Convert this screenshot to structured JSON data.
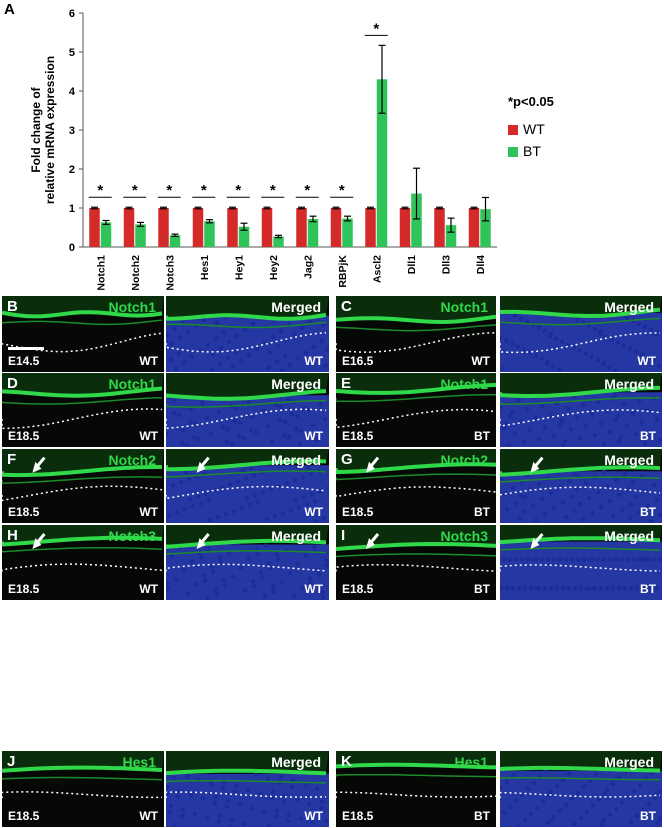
{
  "figure": {
    "panel_a_label": "A",
    "legend_note": "*p<0.05",
    "colors": {
      "WT": "#d42a2a",
      "BT": "#2fc45a",
      "fluor_green": "#2fd94a",
      "dapi_blue": "#2a3fbf"
    }
  },
  "chart_data": {
    "type": "bar",
    "categories": [
      "Notch1",
      "Notch2",
      "Notch3",
      "Hes1",
      "Hey1",
      "Hey2",
      "Jag2",
      "RBPjK",
      "Ascl2",
      "Dll1",
      "Dll3",
      "Dll4"
    ],
    "series": [
      {
        "name": "WT",
        "color": "#d42a2a",
        "values": [
          1.0,
          1.0,
          1.0,
          1.0,
          1.0,
          1.0,
          1.0,
          1.0,
          1.0,
          1.0,
          1.0,
          1.0
        ],
        "errors": [
          0.02,
          0.02,
          0.02,
          0.02,
          0.02,
          0.02,
          0.02,
          0.02,
          0.02,
          0.02,
          0.02,
          0.02
        ]
      },
      {
        "name": "BT",
        "color": "#2fc45a",
        "values": [
          0.63,
          0.58,
          0.3,
          0.66,
          0.52,
          0.27,
          0.72,
          0.73,
          4.3,
          1.37,
          0.56,
          0.97
        ],
        "errors": [
          0.05,
          0.05,
          0.03,
          0.04,
          0.09,
          0.03,
          0.07,
          0.06,
          0.87,
          0.65,
          0.18,
          0.3
        ]
      }
    ],
    "significance": [
      true,
      true,
      true,
      true,
      true,
      true,
      true,
      true,
      true,
      false,
      false,
      false
    ],
    "significance_mark": "*",
    "ylabel": "Fold change of relative mRNA expression",
    "ylabel_lines": [
      "Fold change of",
      "relative mRNA expression"
    ],
    "xlabel": "",
    "ylim": [
      0,
      6
    ],
    "yticks": [
      0,
      1,
      2,
      3,
      4,
      5,
      6
    ],
    "legend_position": "right",
    "grid": false
  },
  "panels": [
    {
      "label": "B",
      "marker": "Notch1",
      "stage": "E14.5",
      "genotype": "WT",
      "scalebar": true,
      "arrow": false
    },
    {
      "label": "",
      "marker": "Merged",
      "stage": "",
      "genotype": "WT",
      "scalebar": false,
      "arrow": false
    },
    {
      "label": "C",
      "marker": "Notch1",
      "stage": "E16.5",
      "genotype": "WT",
      "scalebar": false,
      "arrow": false
    },
    {
      "label": "",
      "marker": "Merged",
      "stage": "",
      "genotype": "WT",
      "scalebar": false,
      "arrow": false
    },
    {
      "label": "D",
      "marker": "Notch1",
      "stage": "E18.5",
      "genotype": "WT",
      "scalebar": false,
      "arrow": false
    },
    {
      "label": "",
      "marker": "Merged",
      "stage": "",
      "genotype": "WT",
      "scalebar": false,
      "arrow": false
    },
    {
      "label": "E",
      "marker": "Notch1",
      "stage": "E18.5",
      "genotype": "BT",
      "scalebar": false,
      "arrow": false
    },
    {
      "label": "",
      "marker": "Merged",
      "stage": "",
      "genotype": "BT",
      "scalebar": false,
      "arrow": false
    },
    {
      "label": "F",
      "marker": "Notch2",
      "stage": "E18.5",
      "genotype": "WT",
      "scalebar": false,
      "arrow": true
    },
    {
      "label": "",
      "marker": "Merged",
      "stage": "",
      "genotype": "WT",
      "scalebar": false,
      "arrow": true
    },
    {
      "label": "G",
      "marker": "Notch2",
      "stage": "E18.5",
      "genotype": "BT",
      "scalebar": false,
      "arrow": true
    },
    {
      "label": "",
      "marker": "Merged",
      "stage": "",
      "genotype": "BT",
      "scalebar": false,
      "arrow": true
    },
    {
      "label": "H",
      "marker": "Notch3",
      "stage": "E18.5",
      "genotype": "WT",
      "scalebar": false,
      "arrow": true
    },
    {
      "label": "",
      "marker": "Merged",
      "stage": "",
      "genotype": "WT",
      "scalebar": false,
      "arrow": true
    },
    {
      "label": "I",
      "marker": "Notch3",
      "stage": "E18.5",
      "genotype": "BT",
      "scalebar": false,
      "arrow": true
    },
    {
      "label": "",
      "marker": "Merged",
      "stage": "",
      "genotype": "BT",
      "scalebar": false,
      "arrow": true
    },
    {
      "label": "J",
      "marker": "Hes1",
      "stage": "E18.5",
      "genotype": "WT",
      "scalebar": false,
      "arrow": false
    },
    {
      "label": "",
      "marker": "Merged",
      "stage": "",
      "genotype": "WT",
      "scalebar": false,
      "arrow": false
    },
    {
      "label": "K",
      "marker": "Hes1",
      "stage": "E18.5",
      "genotype": "BT",
      "scalebar": false,
      "arrow": false
    },
    {
      "label": "",
      "marker": "Merged",
      "stage": "",
      "genotype": "BT",
      "scalebar": false,
      "arrow": false
    }
  ]
}
